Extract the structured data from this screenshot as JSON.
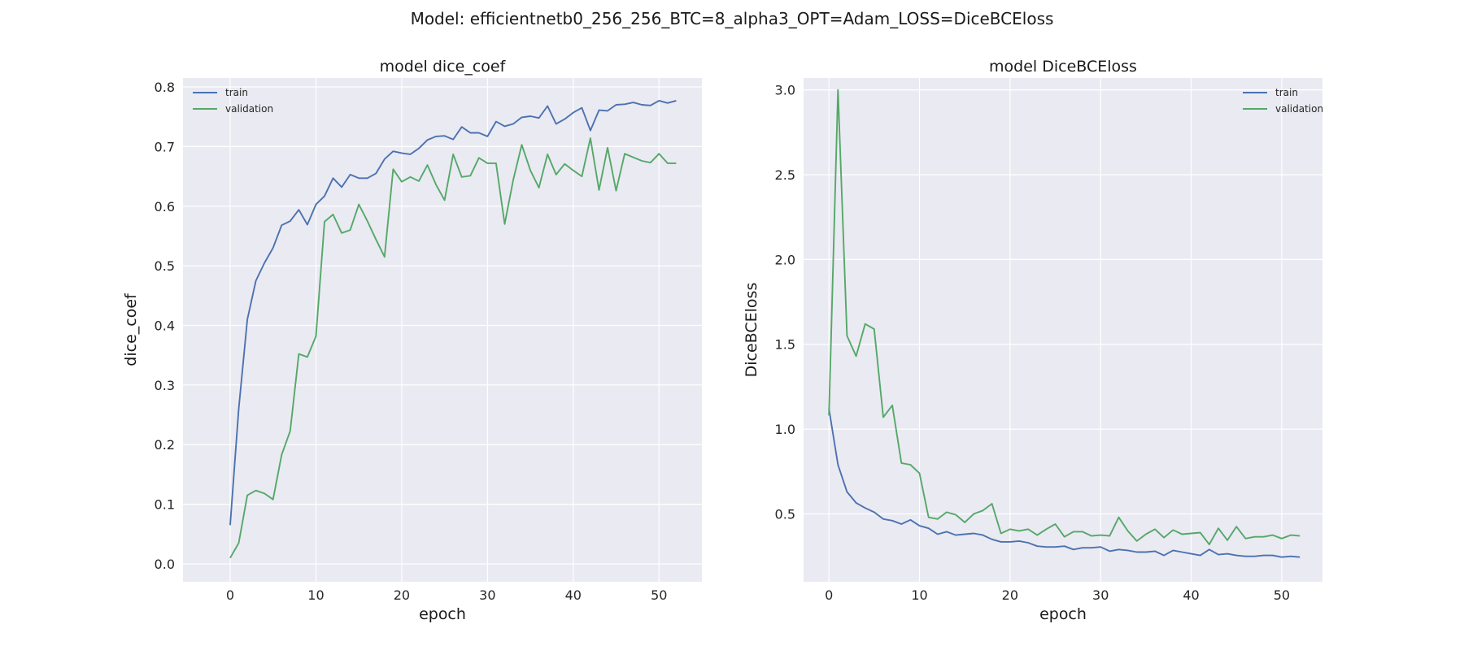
{
  "figure_title": "Model: efficientnetb0_256_256_BTC=8_alpha3_OPT=Adam_LOSS=DiceBCEloss",
  "colors": {
    "train": "#4c72b0",
    "validation": "#55a868",
    "plot_bg": "#eaeaf2",
    "grid": "#ffffff"
  },
  "chart_data": [
    {
      "type": "line",
      "title": "model  dice_coef",
      "xlabel": "epoch",
      "ylabel": "dice_coef",
      "xlim": [
        -5.5,
        55
      ],
      "ylim": [
        -0.03,
        0.815
      ],
      "xticks": [
        0,
        10,
        20,
        30,
        40,
        50
      ],
      "yticks": [
        0.0,
        0.1,
        0.2,
        0.3,
        0.4,
        0.5,
        0.6,
        0.7,
        0.8
      ],
      "ytick_labels": [
        "0.0",
        "0.1",
        "0.2",
        "0.3",
        "0.4",
        "0.5",
        "0.6",
        "0.7",
        "0.8"
      ],
      "grid": true,
      "legend_position": "upper left",
      "x": [
        0,
        1,
        2,
        3,
        4,
        5,
        6,
        7,
        8,
        9,
        10,
        11,
        12,
        13,
        14,
        15,
        16,
        17,
        18,
        19,
        20,
        21,
        22,
        23,
        24,
        25,
        26,
        27,
        28,
        29,
        30,
        31,
        32,
        33,
        34,
        35,
        36,
        37,
        38,
        39,
        40,
        41,
        42,
        43,
        44,
        45,
        46,
        47,
        48,
        49,
        50,
        51,
        52
      ],
      "series": [
        {
          "name": "train",
          "color": "#4c72b0",
          "values": [
            0.065,
            0.26,
            0.41,
            0.475,
            0.505,
            0.53,
            0.568,
            0.575,
            0.594,
            0.569,
            0.603,
            0.617,
            0.647,
            0.632,
            0.653,
            0.647,
            0.647,
            0.655,
            0.679,
            0.692,
            0.689,
            0.687,
            0.697,
            0.711,
            0.717,
            0.718,
            0.712,
            0.733,
            0.723,
            0.723,
            0.717,
            0.742,
            0.734,
            0.738,
            0.749,
            0.751,
            0.748,
            0.768,
            0.738,
            0.746,
            0.757,
            0.765,
            0.727,
            0.761,
            0.76,
            0.77,
            0.771,
            0.774,
            0.77,
            0.769,
            0.777,
            0.773,
            0.777
          ]
        },
        {
          "name": "validation",
          "color": "#55a868",
          "values": [
            0.01,
            0.035,
            0.115,
            0.123,
            0.118,
            0.108,
            0.183,
            0.223,
            0.352,
            0.347,
            0.382,
            0.574,
            0.586,
            0.555,
            0.56,
            0.603,
            0.575,
            0.544,
            0.515,
            0.662,
            0.641,
            0.649,
            0.642,
            0.669,
            0.636,
            0.61,
            0.687,
            0.649,
            0.651,
            0.681,
            0.672,
            0.672,
            0.57,
            0.644,
            0.703,
            0.66,
            0.631,
            0.687,
            0.653,
            0.671,
            0.66,
            0.65,
            0.714,
            0.627,
            0.698,
            0.626,
            0.688,
            0.682,
            0.676,
            0.673,
            0.688,
            0.672,
            0.672
          ]
        }
      ]
    },
    {
      "type": "line",
      "title": "model DiceBCEloss",
      "xlabel": "epoch",
      "ylabel": "DiceBCEloss",
      "xlim": [
        -2.8,
        54.5
      ],
      "ylim": [
        0.1,
        3.07
      ],
      "xticks": [
        0,
        10,
        20,
        30,
        40,
        50
      ],
      "yticks": [
        0.5,
        1.0,
        1.5,
        2.0,
        2.5,
        3.0
      ],
      "ytick_labels": [
        "0.5",
        "1.0",
        "1.5",
        "2.0",
        "2.5",
        "3.0"
      ],
      "grid": true,
      "legend_position": "upper right",
      "x": [
        0,
        1,
        2,
        3,
        4,
        5,
        6,
        7,
        8,
        9,
        10,
        11,
        12,
        13,
        14,
        15,
        16,
        17,
        18,
        19,
        20,
        21,
        22,
        23,
        24,
        25,
        26,
        27,
        28,
        29,
        30,
        31,
        32,
        33,
        34,
        35,
        36,
        37,
        38,
        39,
        40,
        41,
        42,
        43,
        44,
        45,
        46,
        47,
        48,
        49,
        50,
        51,
        52
      ],
      "series": [
        {
          "name": "train",
          "color": "#4c72b0",
          "values": [
            1.12,
            0.79,
            0.63,
            0.565,
            0.535,
            0.51,
            0.47,
            0.46,
            0.44,
            0.465,
            0.43,
            0.415,
            0.38,
            0.395,
            0.375,
            0.38,
            0.385,
            0.375,
            0.35,
            0.335,
            0.335,
            0.34,
            0.33,
            0.31,
            0.305,
            0.305,
            0.31,
            0.29,
            0.3,
            0.3,
            0.305,
            0.28,
            0.29,
            0.285,
            0.275,
            0.275,
            0.28,
            0.255,
            0.285,
            0.275,
            0.265,
            0.255,
            0.29,
            0.26,
            0.265,
            0.255,
            0.25,
            0.25,
            0.255,
            0.255,
            0.245,
            0.25,
            0.245
          ]
        },
        {
          "name": "validation",
          "color": "#55a868",
          "values": [
            1.08,
            3.0,
            1.55,
            1.43,
            1.62,
            1.59,
            1.07,
            1.14,
            0.8,
            0.79,
            0.74,
            0.48,
            0.47,
            0.51,
            0.495,
            0.45,
            0.5,
            0.52,
            0.56,
            0.385,
            0.41,
            0.4,
            0.41,
            0.375,
            0.41,
            0.44,
            0.365,
            0.395,
            0.395,
            0.37,
            0.375,
            0.37,
            0.48,
            0.4,
            0.34,
            0.38,
            0.41,
            0.36,
            0.405,
            0.38,
            0.385,
            0.39,
            0.32,
            0.415,
            0.345,
            0.425,
            0.355,
            0.365,
            0.365,
            0.375,
            0.355,
            0.375,
            0.37
          ]
        }
      ]
    }
  ]
}
